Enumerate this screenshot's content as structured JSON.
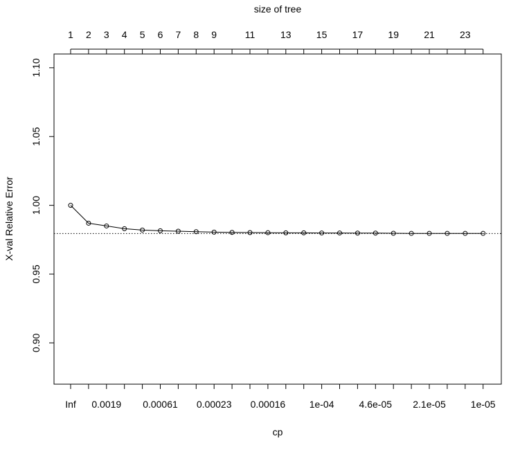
{
  "chart_data": {
    "type": "line",
    "title": "",
    "xlabel": "cp",
    "ylabel": "X-val Relative Error",
    "top_axis_label": "size of tree",
    "x": [
      1,
      2,
      3,
      4,
      5,
      6,
      7,
      8,
      9,
      10,
      11,
      12,
      13,
      14,
      15,
      16,
      17,
      18,
      19,
      20,
      21,
      22,
      23,
      24
    ],
    "series": [
      {
        "values": [
          1.0,
          0.987,
          0.985,
          0.983,
          0.982,
          0.9815,
          0.9812,
          0.9808,
          0.9805,
          0.9803,
          0.9802,
          0.9801,
          0.98,
          0.98,
          0.9799,
          0.9799,
          0.9798,
          0.9798,
          0.9797,
          0.9796,
          0.9796,
          0.9796,
          0.9796,
          0.9796
        ]
      }
    ],
    "reference_line": {
      "y": 0.9795,
      "style": "dotted"
    },
    "ylim": [
      0.87,
      1.11
    ],
    "y_ticks": [
      {
        "value": 0.9,
        "label": "0.90"
      },
      {
        "value": 0.95,
        "label": "0.95"
      },
      {
        "value": 1.0,
        "label": "1.00"
      },
      {
        "value": 1.05,
        "label": "1.05"
      },
      {
        "value": 1.1,
        "label": "1.10"
      }
    ],
    "bottom_tick_positions": [
      1,
      2,
      3,
      4,
      5,
      6,
      7,
      8,
      9,
      10,
      11,
      12,
      13,
      14,
      15,
      16,
      17,
      18,
      19,
      20,
      21,
      22,
      23,
      24
    ],
    "bottom_tick_labels": [
      {
        "pos": 1,
        "label": "Inf"
      },
      {
        "pos": 3,
        "label": "0.0019"
      },
      {
        "pos": 6,
        "label": "0.00061"
      },
      {
        "pos": 9,
        "label": "0.00023"
      },
      {
        "pos": 12,
        "label": "0.00016"
      },
      {
        "pos": 15,
        "label": "1e-04"
      },
      {
        "pos": 18,
        "label": "4.6e-05"
      },
      {
        "pos": 21,
        "label": "2.1e-05"
      },
      {
        "pos": 24,
        "label": "1e-05"
      }
    ],
    "top_tick_positions": [
      1,
      2,
      3,
      4,
      5,
      6,
      7,
      8,
      9,
      10,
      11,
      12,
      13,
      14,
      15,
      16,
      17,
      18,
      19,
      20,
      21,
      22,
      23,
      24
    ],
    "top_tick_labels": [
      {
        "pos": 1,
        "label": "1"
      },
      {
        "pos": 2,
        "label": "2"
      },
      {
        "pos": 3,
        "label": "3"
      },
      {
        "pos": 4,
        "label": "4"
      },
      {
        "pos": 5,
        "label": "5"
      },
      {
        "pos": 6,
        "label": "6"
      },
      {
        "pos": 7,
        "label": "7"
      },
      {
        "pos": 8,
        "label": "8"
      },
      {
        "pos": 9,
        "label": "9"
      },
      {
        "pos": 11,
        "label": "11"
      },
      {
        "pos": 13,
        "label": "13"
      },
      {
        "pos": 15,
        "label": "15"
      },
      {
        "pos": 17,
        "label": "17"
      },
      {
        "pos": 19,
        "label": "19"
      },
      {
        "pos": 21,
        "label": "21"
      },
      {
        "pos": 23,
        "label": "23"
      }
    ]
  }
}
